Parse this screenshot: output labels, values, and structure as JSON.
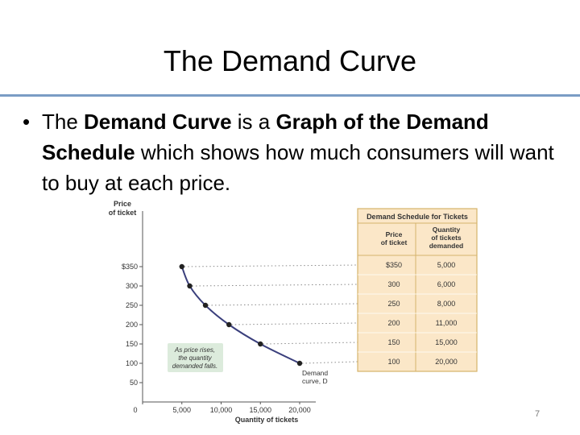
{
  "slide": {
    "title": "The Demand Curve",
    "bullet_symbol": "•",
    "text_runs": [
      {
        "text": "The ",
        "bold": false
      },
      {
        "text": "Demand Curve",
        "bold": true
      },
      {
        "text": " is a ",
        "bold": false
      },
      {
        "text": "Graph of the Demand Schedule",
        "bold": true
      },
      {
        "text": " which shows how much consumers will want to buy at each price.",
        "bold": false
      }
    ],
    "slide_number": "7"
  },
  "chart_data": {
    "type": "line",
    "ylabel_lines": [
      "Price",
      "of ticket"
    ],
    "xlabel": "Quantity of tickets",
    "yticks": [
      {
        "value": 350,
        "label": "$350"
      },
      {
        "value": 300,
        "label": "300"
      },
      {
        "value": 250,
        "label": "250"
      },
      {
        "value": 200,
        "label": "200"
      },
      {
        "value": 150,
        "label": "150"
      },
      {
        "value": 100,
        "label": "100"
      },
      {
        "value": 50,
        "label": "50"
      }
    ],
    "xticks": [
      {
        "value": 0,
        "label": "0"
      },
      {
        "value": 5000,
        "label": "5,000"
      },
      {
        "value": 10000,
        "label": "10,000"
      },
      {
        "value": 15000,
        "label": "15,000"
      },
      {
        "value": 20000,
        "label": "20,000"
      }
    ],
    "xlim": [
      0,
      20000
    ],
    "ylim": [
      0,
      350
    ],
    "points": [
      {
        "x": 5000,
        "y": 350
      },
      {
        "x": 6000,
        "y": 300
      },
      {
        "x": 8000,
        "y": 250
      },
      {
        "x": 11000,
        "y": 200
      },
      {
        "x": 15000,
        "y": 150
      },
      {
        "x": 20000,
        "y": 100
      }
    ],
    "curve_label_lines": [
      "Demand",
      "curve, D"
    ],
    "annotation_lines": [
      "As price rises,",
      "the quantity",
      "demanded falls."
    ],
    "table": {
      "title": "Demand Schedule for Tickets",
      "headers": [
        [
          "Price",
          "of ticket"
        ],
        [
          "Quantity",
          "of tickets",
          "demanded"
        ]
      ],
      "rows": [
        [
          "$350",
          "5,000"
        ],
        [
          "300",
          "6,000"
        ],
        [
          "250",
          "8,000"
        ],
        [
          "200",
          "11,000"
        ],
        [
          "150",
          "15,000"
        ],
        [
          "100",
          "20,000"
        ]
      ]
    },
    "colors": {
      "curve": "#3a3f7c",
      "axis": "#555555",
      "table_fill": "#fbe7c8",
      "table_border": "#d6b36b",
      "annotation_fill": "#dcebdc",
      "title_rule": "#7a9cc4"
    }
  }
}
